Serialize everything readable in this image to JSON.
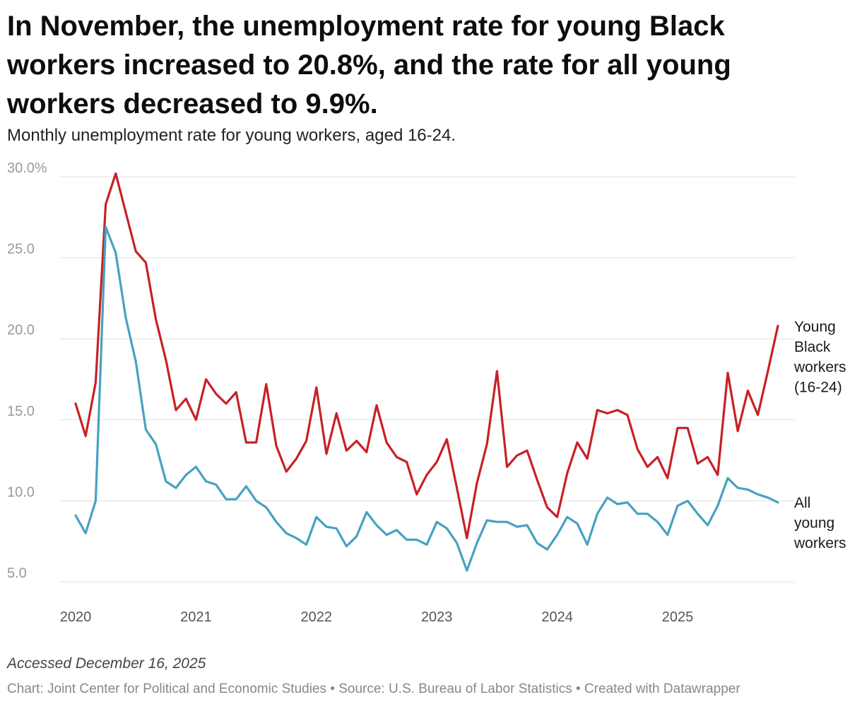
{
  "header": {
    "title": "In November, the unemployment rate for young Black workers increased to 20.8%, and the rate for all young workers decreased to 9.9%.",
    "subtitle": "Monthly unemployment rate for young workers, aged 16-24."
  },
  "footer": {
    "notes": "Accessed December 16, 2025",
    "source": "Chart: Joint Center for Political and Economic Studies • Source: U.S. Bureau of Labor Statistics • Created with Datawrapper"
  },
  "colors": {
    "young_black": "#c72127",
    "all_young": "#46a2c1"
  },
  "chart_data": {
    "type": "line",
    "title": "In November, the unemployment rate for young Black workers increased to 20.8%, and the rate for all young workers decreased to 9.9%.",
    "subtitle": "Monthly unemployment rate for young workers, aged 16-24.",
    "xlabel": "",
    "ylabel": "",
    "x_start": "2020-01",
    "x_end": "2025-11",
    "ylim": [
      5,
      30
    ],
    "yticks": [
      5,
      10,
      15,
      20,
      25,
      30
    ],
    "ytick_labels": [
      "5.0",
      "10.0",
      "15.0",
      "20.0",
      "25.0",
      "30.0%"
    ],
    "xticks": [
      "2020",
      "2021",
      "2022",
      "2023",
      "2024",
      "2025"
    ],
    "grid": true,
    "legend": "direct labels at right end of lines",
    "series": [
      {
        "name": "Young Black workers (16-24)",
        "label_lines": [
          "Young",
          "Black",
          "workers",
          "(16-24)"
        ],
        "color": "#c72127",
        "values": [
          16.0,
          14.0,
          17.3,
          28.3,
          30.2,
          27.8,
          25.4,
          24.7,
          21.2,
          18.7,
          15.6,
          16.3,
          15.0,
          17.5,
          16.6,
          16.0,
          16.7,
          13.6,
          13.6,
          17.2,
          13.4,
          11.8,
          12.6,
          13.7,
          17.0,
          12.9,
          15.4,
          13.1,
          13.7,
          13.0,
          15.9,
          13.6,
          12.7,
          12.4,
          10.4,
          11.6,
          12.4,
          13.8,
          10.8,
          7.7,
          11.1,
          13.5,
          18.0,
          12.1,
          12.8,
          13.1,
          11.3,
          9.6,
          9.0,
          11.7,
          13.6,
          12.6,
          15.6,
          15.4,
          15.6,
          15.3,
          13.2,
          12.1,
          12.7,
          11.4,
          14.5,
          14.5,
          12.3,
          12.7,
          11.6,
          17.9,
          14.3,
          16.8,
          15.3,
          18.0,
          20.8
        ]
      },
      {
        "name": "All young workers",
        "label_lines": [
          "All",
          "young",
          "workers"
        ],
        "color": "#46a2c1",
        "values": [
          9.1,
          8.0,
          10.0,
          26.9,
          25.3,
          21.3,
          18.6,
          14.4,
          13.5,
          11.2,
          10.8,
          11.6,
          12.1,
          11.2,
          11.0,
          10.1,
          10.1,
          10.9,
          10.0,
          9.6,
          8.7,
          8.0,
          7.7,
          7.3,
          9.0,
          8.4,
          8.3,
          7.2,
          7.8,
          9.3,
          8.5,
          7.9,
          8.2,
          7.6,
          7.6,
          7.3,
          8.7,
          8.3,
          7.4,
          5.7,
          7.4,
          8.8,
          8.7,
          8.7,
          8.4,
          8.5,
          7.4,
          7.0,
          7.9,
          9.0,
          8.6,
          7.3,
          9.2,
          10.2,
          9.8,
          9.9,
          9.2,
          9.2,
          8.7,
          7.9,
          9.7,
          10.0,
          9.2,
          8.5,
          9.7,
          11.4,
          10.8,
          10.7,
          10.4,
          10.2,
          9.9
        ]
      }
    ]
  }
}
